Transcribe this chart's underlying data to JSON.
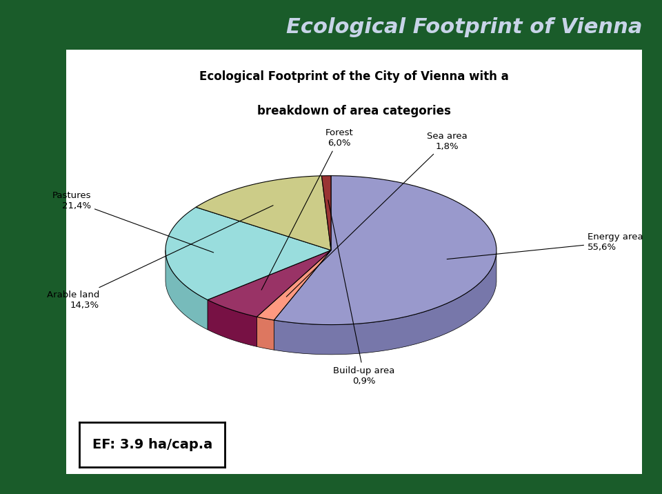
{
  "title_main": "Ecological Footprint of Vienna",
  "title_main_color": "#C8D4E8",
  "title_main_bg": "#1a5c2a",
  "chart_title_line1": "Ecological Footprint of the City of Vienna with a",
  "chart_title_line2": "breakdown of area categories",
  "chart_bg": "#FFFFFF",
  "outer_bg": "#1a5c2a",
  "slices": [
    {
      "label": "Energy area",
      "pct": 55.6,
      "color": "#9999CC",
      "side_color": "#7777AA"
    },
    {
      "label": "Sea area",
      "pct": 1.8,
      "color": "#FF9980",
      "side_color": "#DD7760"
    },
    {
      "label": "Forest",
      "pct": 6.0,
      "color": "#993366",
      "side_color": "#771144"
    },
    {
      "label": "Pastures",
      "pct": 21.4,
      "color": "#99DDDD",
      "side_color": "#77BBBB"
    },
    {
      "label": "Arable land",
      "pct": 14.3,
      "color": "#CCCC88",
      "side_color": "#AAAA66"
    },
    {
      "label": "Build-up area",
      "pct": 0.9,
      "color": "#993333",
      "side_color": "#771111"
    }
  ],
  "ef_text": "EF: 3.9 ha/cap.a",
  "startangle": 90
}
